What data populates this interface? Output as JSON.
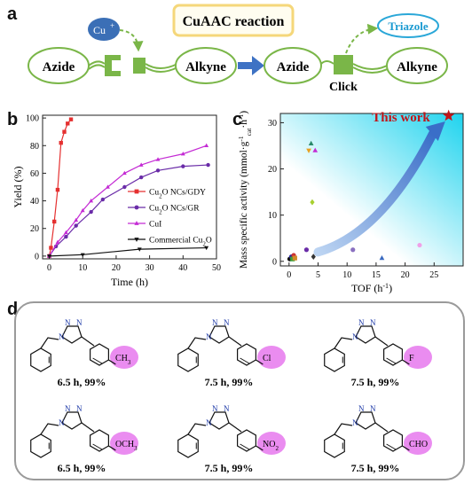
{
  "panels": {
    "a": "a",
    "b": "b",
    "c": "c",
    "d": "d"
  },
  "scheme": {
    "title": "CuAAC reaction",
    "cu_label": "Cu",
    "cu_sup": "+",
    "left_azide": "Azide",
    "left_alkyne": "Alkyne",
    "right_azide": "Azide",
    "right_alkyne": "Alkyne",
    "triazole": "Triazole",
    "click": "Click",
    "colors": {
      "green": "#7ab648",
      "blue_circle": "#3b6fb6",
      "title_border": "#f5d77a",
      "arrow": "#3e72c4",
      "triazole_border": "#2aa7d8",
      "triazole_text": "#1a9ad1"
    }
  },
  "chart_data": [
    {
      "panel": "b",
      "type": "line",
      "xlabel": "Time (h)",
      "ylabel": "Yield (%)",
      "xlim": [
        -2,
        50
      ],
      "ylim": [
        -2,
        102
      ],
      "xticks": [
        0,
        10,
        20,
        30,
        40,
        50
      ],
      "yticks": [
        0,
        20,
        40,
        60,
        80,
        100
      ],
      "legend_position": "center-right",
      "series": [
        {
          "name": "Cu2O NCs/GDY",
          "color": "#e53030",
          "marker": "square",
          "x": [
            0,
            0.5,
            1.5,
            2.5,
            3.5,
            4.5,
            5.5,
            6.5
          ],
          "y": [
            0,
            6,
            25,
            48,
            82,
            90,
            96,
            99
          ]
        },
        {
          "name": "Cu2O NCs/GR",
          "color": "#6a2ca8",
          "marker": "circle",
          "x": [
            0,
            2,
            5,
            8,
            12.5,
            16,
            22.5,
            27.5,
            32.5,
            40,
            47.5
          ],
          "y": [
            0,
            7,
            14,
            22,
            32,
            41,
            50,
            57,
            62,
            65,
            66
          ]
        },
        {
          "name": "CuI",
          "color": "#c42bd4",
          "marker": "triangle",
          "x": [
            0,
            2.5,
            5,
            8,
            10,
            12.5,
            17.5,
            22.5,
            27.5,
            32.5,
            40,
            47
          ],
          "y": [
            0,
            10,
            17,
            26,
            33,
            40,
            50,
            60,
            66,
            70,
            74,
            80
          ]
        },
        {
          "name": "Commercial Cu2O",
          "color": "#111111",
          "marker": "triangle-down",
          "x": [
            0,
            10,
            27,
            47
          ],
          "y": [
            0,
            1,
            5,
            6
          ]
        }
      ]
    },
    {
      "panel": "c",
      "type": "scatter",
      "xlabel": "TOF (h",
      "xlabel_sup": "-1",
      "xlabel_end": ")",
      "ylabel_parts": [
        "Mass specific activity (mmol·g",
        "-1",
        "cat",
        "·h",
        "-1",
        ")"
      ],
      "xlim": [
        -1.5,
        30
      ],
      "ylim": [
        -1,
        32
      ],
      "xticks": [
        0,
        5,
        10,
        15,
        20,
        25
      ],
      "yticks": [
        0,
        10,
        20,
        30
      ],
      "annotation": "This work",
      "highlight": {
        "x": 27.5,
        "y": 31.5,
        "color": "#c0161a"
      },
      "points": [
        {
          "x": 0.1,
          "y": 0.5,
          "color": "#111111",
          "shape": "circle"
        },
        {
          "x": 0.4,
          "y": 1.0,
          "color": "#2a2a9a",
          "shape": "circle"
        },
        {
          "x": 0.6,
          "y": 0.5,
          "color": "#3aa03a",
          "shape": "square"
        },
        {
          "x": 0.8,
          "y": 1.3,
          "color": "#cc3333",
          "shape": "circle"
        },
        {
          "x": 1.0,
          "y": 0.7,
          "color": "#d28a2a",
          "shape": "square"
        },
        {
          "x": 3.0,
          "y": 2.5,
          "color": "#6a2ca8",
          "shape": "circle"
        },
        {
          "x": 3.4,
          "y": 24.0,
          "color": "#e8a020",
          "shape": "triangle-down"
        },
        {
          "x": 3.8,
          "y": 25.5,
          "color": "#2a8a6a",
          "shape": "triangle"
        },
        {
          "x": 4.0,
          "y": 12.8,
          "color": "#a8d030",
          "shape": "diamond"
        },
        {
          "x": 4.2,
          "y": 1.0,
          "color": "#333333",
          "shape": "diamond"
        },
        {
          "x": 4.5,
          "y": 24.0,
          "color": "#c42bd4",
          "shape": "triangle"
        },
        {
          "x": 11.0,
          "y": 2.5,
          "color": "#8a70c0",
          "shape": "circle"
        },
        {
          "x": 16.0,
          "y": 0.7,
          "color": "#3a6ac0",
          "shape": "triangle"
        },
        {
          "x": 22.5,
          "y": 3.5,
          "color": "#f0a0e8",
          "shape": "circle"
        }
      ]
    }
  ],
  "molecules": [
    {
      "substituent": "CH3",
      "caption": "6.5 h, 99%"
    },
    {
      "substituent": "Cl",
      "caption": "7.5 h, 99%"
    },
    {
      "substituent": "F",
      "caption": "7.5 h, 99%"
    },
    {
      "substituent": "OCH3",
      "caption": "6.5 h, 99%"
    },
    {
      "substituent": "NO2",
      "caption": "7.5 h, 99%"
    },
    {
      "substituent": "CHO",
      "caption": "7.5 h, 99%"
    }
  ],
  "molecule_labels": {
    "n1": "N",
    "n2": "N",
    "n3": "N",
    "colors": {
      "ring_n": "#1e3aa8",
      "highlight": "#ea8cf0"
    }
  }
}
